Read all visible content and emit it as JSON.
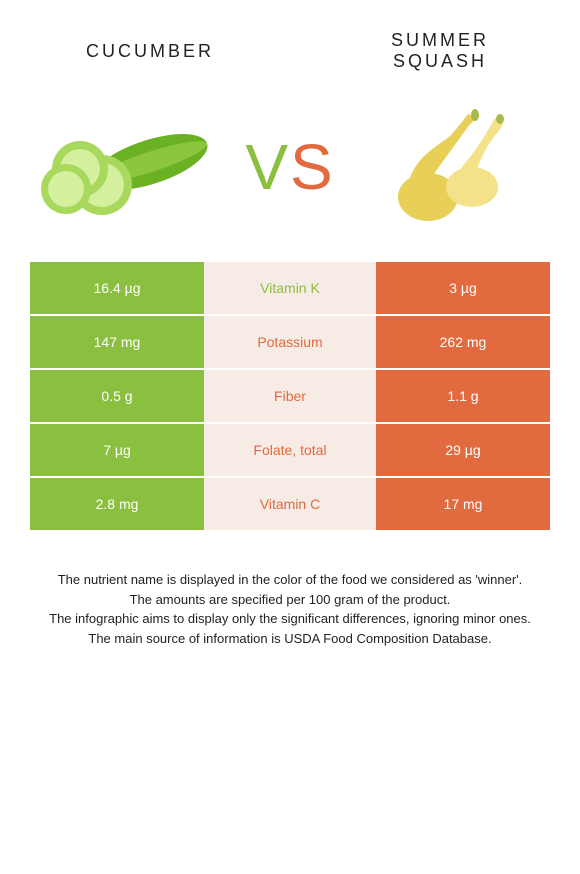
{
  "titles": {
    "left": "Cucumber",
    "right": "Summer Squash"
  },
  "vs": {
    "v": "V",
    "s": "S"
  },
  "colors": {
    "left_bar": "#8bbf3f",
    "right_bar": "#e16a3e",
    "mid_bg": "#f6ebe5",
    "nutrient_left_win": "#8bbf3f",
    "nutrient_right_win": "#e16a3e"
  },
  "rows": [
    {
      "nutrient": "Vitamin K",
      "left": "16.4 µg",
      "right": "3 µg",
      "winner": "left"
    },
    {
      "nutrient": "Potassium",
      "left": "147 mg",
      "right": "262 mg",
      "winner": "right"
    },
    {
      "nutrient": "Fiber",
      "left": "0.5 g",
      "right": "1.1 g",
      "winner": "right"
    },
    {
      "nutrient": "Folate, total",
      "left": "7 µg",
      "right": "29 µg",
      "winner": "right"
    },
    {
      "nutrient": "Vitamin C",
      "left": "2.8 mg",
      "right": "17 mg",
      "winner": "right"
    }
  ],
  "footer": {
    "l1": "The nutrient name is displayed in the color of the food we considered as 'winner'.",
    "l2": "The amounts are specified per 100 gram of the product.",
    "l3": "The infographic aims to display only the significant differences, ignoring minor ones.",
    "l4": "The main source of information is USDA Food Composition Database."
  }
}
